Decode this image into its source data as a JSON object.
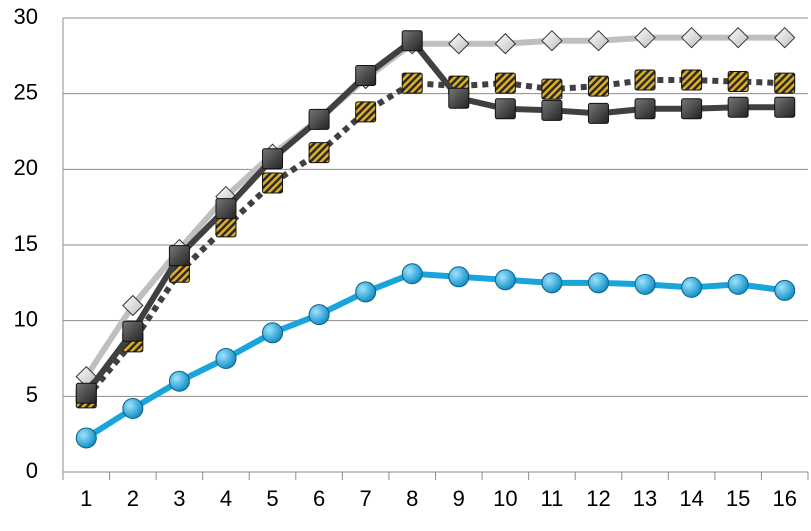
{
  "chart_data": {
    "type": "line",
    "categories": [
      "1",
      "2",
      "3",
      "4",
      "5",
      "6",
      "7",
      "8",
      "9",
      "10",
      "11",
      "12",
      "13",
      "14",
      "15",
      "16"
    ],
    "ylim": [
      0,
      30
    ],
    "yticks": [
      0,
      5,
      10,
      15,
      20,
      25,
      30
    ],
    "grid": true,
    "series": [
      {
        "color": "#bfbfbf",
        "marker": "diamond",
        "dash": "solid",
        "values": [
          6.3,
          11.0,
          14.7,
          18.2,
          21.0,
          23.3,
          26.0,
          28.3,
          28.3,
          28.3,
          28.5,
          28.5,
          28.7,
          28.7,
          28.7,
          28.7
        ]
      },
      {
        "color": "#404040",
        "marker": "striped-square",
        "dash": "dotted",
        "values": [
          4.9,
          8.6,
          13.2,
          16.2,
          19.1,
          21.1,
          23.8,
          25.7,
          25.5,
          25.7,
          25.3,
          25.5,
          25.9,
          25.9,
          25.8,
          25.7
        ]
      },
      {
        "color": "#404040",
        "marker": "square",
        "dash": "solid",
        "values": [
          5.2,
          9.3,
          14.3,
          17.4,
          20.7,
          23.3,
          26.2,
          28.5,
          24.7,
          24.0,
          23.9,
          23.7,
          24.0,
          24.0,
          24.1,
          24.1
        ]
      },
      {
        "color": "#17a5dc",
        "marker": "circle",
        "dash": "solid",
        "values": [
          2.25,
          4.2,
          6.0,
          7.5,
          9.2,
          10.4,
          11.9,
          13.1,
          12.9,
          12.7,
          12.5,
          12.5,
          12.4,
          12.2,
          12.4,
          12.0
        ]
      }
    ]
  }
}
